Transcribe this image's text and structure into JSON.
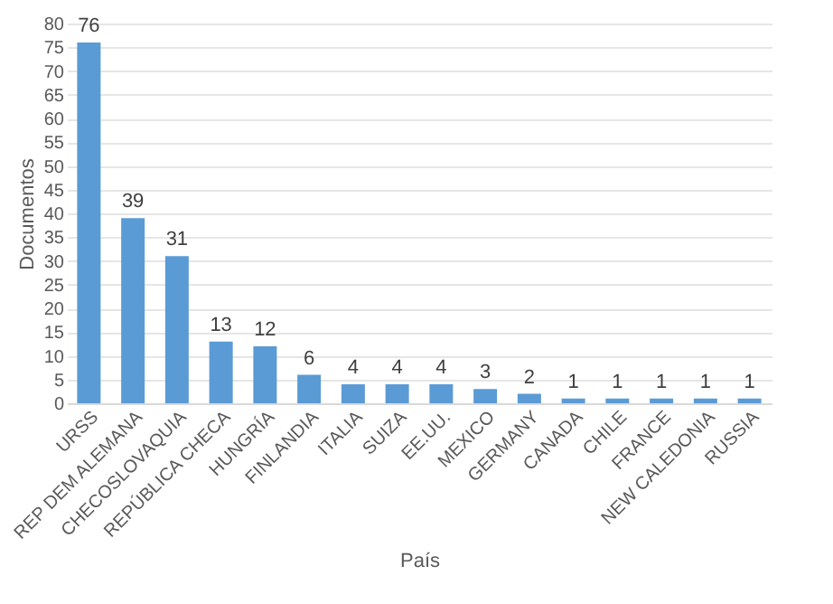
{
  "chart_data": {
    "type": "bar",
    "categories": [
      "URSS",
      "REP DEM ALEMANA",
      "CHECOSLOVAQUIA",
      "REPÚBLICA CHECA",
      "HUNGRÍA",
      "FINLANDIA",
      "ITALIA",
      "SUIZA",
      "EE.UU.",
      "MEXICO",
      "GERMANY",
      "CANADA",
      "CHILE",
      "FRANCE",
      "NEW CALEDONIA",
      "RUSSIA"
    ],
    "values": [
      76,
      39,
      31,
      13,
      12,
      6,
      4,
      4,
      4,
      3,
      2,
      1,
      1,
      1,
      1,
      1
    ],
    "color": "#5b9bd5",
    "xlabel": "País",
    "ylabel": "Documentos",
    "ylim": [
      0,
      80
    ],
    "yticks": [
      0,
      5,
      10,
      15,
      20,
      25,
      30,
      35,
      40,
      45,
      50,
      55,
      60,
      65,
      70,
      75,
      80
    ],
    "grid": "y",
    "data_labels": true
  }
}
